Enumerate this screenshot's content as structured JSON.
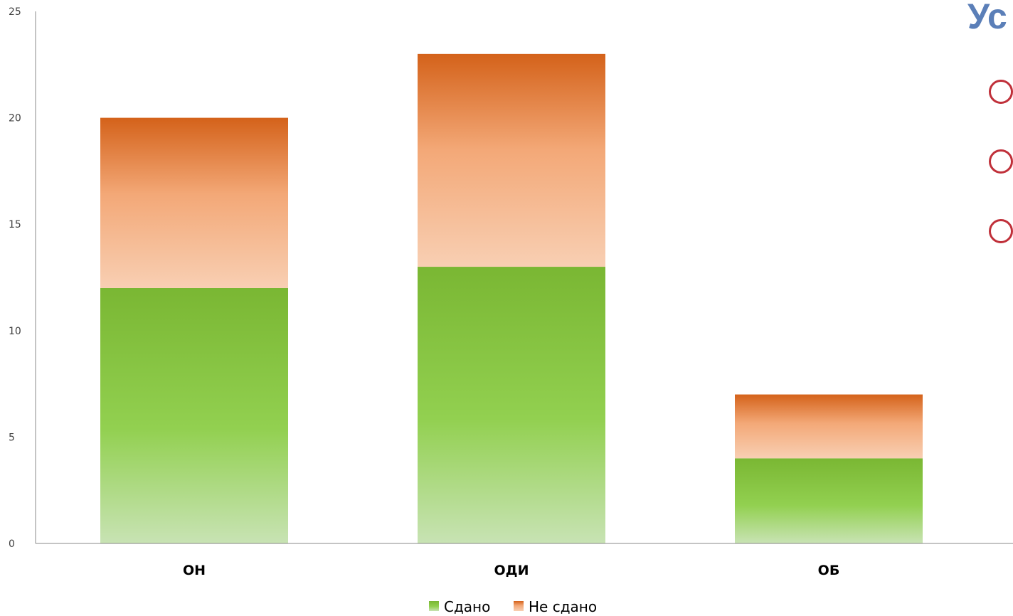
{
  "slide": {
    "title": "Ус",
    "bullet_color": "#c0303a",
    "title_color": "#5b7fb8"
  },
  "chart_data": {
    "type": "bar",
    "stacked": true,
    "categories": [
      "ОН",
      "ОДИ",
      "ОБ"
    ],
    "series": [
      {
        "name": "Сдано",
        "values": [
          12,
          13,
          4
        ],
        "color": "#7ab733",
        "color_light": "#c8e3b4"
      },
      {
        "name": "Не сдано",
        "values": [
          8,
          10,
          3
        ],
        "color": "#d4621a",
        "color_light": "#f8cfb3"
      }
    ],
    "ylim": [
      0,
      25
    ],
    "yticks": [
      0,
      5,
      10,
      15,
      20,
      25
    ],
    "xlabel": "",
    "ylabel": "",
    "grid": false,
    "legend": "bottom"
  }
}
